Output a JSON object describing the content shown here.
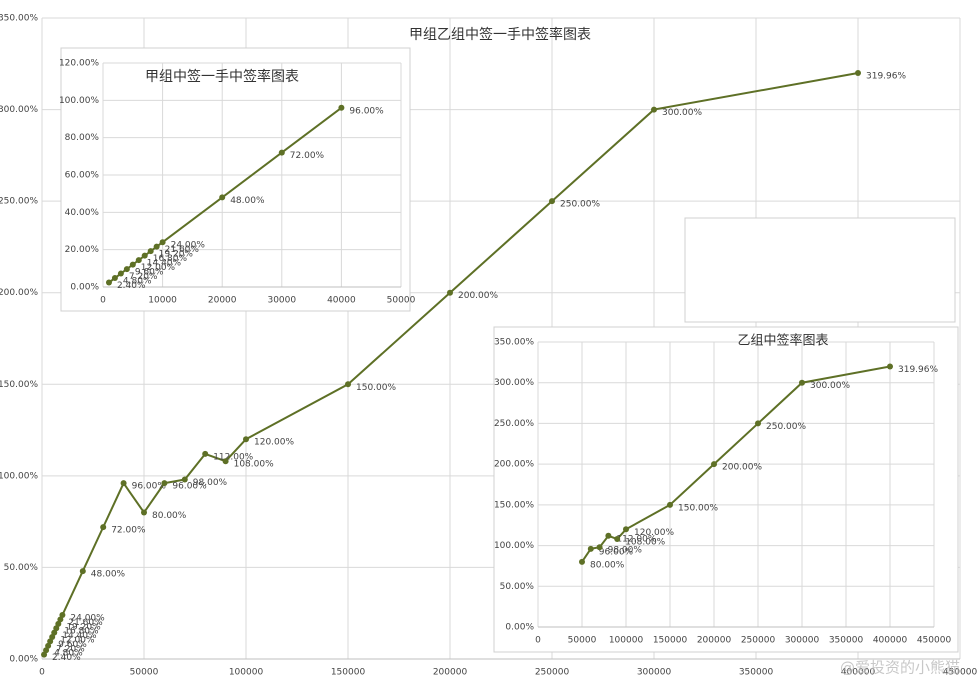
{
  "chart_data": [
    {
      "type": "line",
      "title": "甲组乙组中签一手中签率图表",
      "x": [
        1000,
        2000,
        3000,
        4000,
        5000,
        6000,
        7000,
        8000,
        9000,
        10000,
        20000,
        30000,
        40000,
        50000,
        60000,
        70000,
        80000,
        90000,
        100000,
        150000,
        200000,
        250000,
        300000,
        400000
      ],
      "values": [
        2.4,
        4.8,
        7.2,
        9.6,
        12,
        14.4,
        16.8,
        19.2,
        21.6,
        24,
        48,
        72,
        96,
        80,
        96,
        98,
        112,
        108,
        120,
        150,
        200,
        250,
        300,
        319.96
      ],
      "value_labels": [
        "2.40%",
        "4.80%",
        "7.20%",
        "9.60%",
        "12.00%",
        "14.40%",
        "16.80%",
        "19.20%",
        "21.60%",
        "24.00%",
        "48.00%",
        "72.00%",
        "96.00%",
        "80.00%",
        "96.00%",
        "98.00%",
        "112.00%",
        "108.00%",
        "120.00%",
        "150.00%",
        "200.00%",
        "250.00%",
        "300.00%",
        "319.96%"
      ],
      "color": "#5e7026",
      "xlim": [
        0,
        450000
      ],
      "xticks": [
        0,
        50000,
        100000,
        150000,
        200000,
        250000,
        300000,
        350000,
        400000,
        450000
      ],
      "ylim": [
        0,
        350
      ],
      "yticks": [
        {
          "value": 0,
          "label": "0.00%"
        },
        {
          "value": 50,
          "label": "50.00%"
        },
        {
          "value": 100,
          "label": "100.00%"
        },
        {
          "value": 150,
          "label": "150.00%"
        },
        {
          "value": 200,
          "label": "200.00%"
        },
        {
          "value": 250,
          "label": "250.00%"
        },
        {
          "value": 300,
          "label": "300.00%"
        },
        {
          "value": 350,
          "label": "350.00%"
        }
      ],
      "grid": true
    },
    {
      "type": "line",
      "title": "甲组中签一手中签率图表",
      "x": [
        1000,
        2000,
        3000,
        4000,
        5000,
        6000,
        7000,
        8000,
        9000,
        10000,
        20000,
        30000,
        40000
      ],
      "values": [
        2.4,
        4.8,
        7.2,
        9.6,
        12,
        14.4,
        16.8,
        19.2,
        21.6,
        24,
        48,
        72,
        96
      ],
      "value_labels": [
        "2.40%",
        "4.80%",
        "7.20%",
        "9.60%",
        "12.00%",
        "14.40%",
        "16.80%",
        "19.20%",
        "21.60%",
        "24.00%",
        "48.00%",
        "72.00%",
        "96.00%"
      ],
      "color": "#5e7026",
      "xlim": [
        0,
        50000
      ],
      "xticks": [
        0,
        10000,
        20000,
        30000,
        40000,
        50000
      ],
      "ylim": [
        0,
        120
      ],
      "yticks": [
        {
          "value": 0,
          "label": "0.00%"
        },
        {
          "value": 20,
          "label": "20.00%"
        },
        {
          "value": 40,
          "label": "40.00%"
        },
        {
          "value": 60,
          "label": "60.00%"
        },
        {
          "value": 80,
          "label": "80.00%"
        },
        {
          "value": 100,
          "label": "100.00%"
        },
        {
          "value": 120,
          "label": "120.00%"
        }
      ],
      "grid": true
    },
    {
      "type": "line",
      "title": "乙组中签率图表",
      "x": [
        50000,
        60000,
        70000,
        80000,
        90000,
        100000,
        150000,
        200000,
        250000,
        300000,
        400000
      ],
      "values": [
        80,
        96,
        98,
        112,
        108,
        120,
        150,
        200,
        250,
        300,
        319.96
      ],
      "value_labels": [
        "80.00%",
        "96.00%",
        "98.00%",
        "112.00%",
        "108.00%",
        "120.00%",
        "150.00%",
        "200.00%",
        "250.00%",
        "300.00%",
        "319.96%"
      ],
      "color": "#5e7026",
      "xlim": [
        0,
        450000
      ],
      "xticks": [
        0,
        50000,
        100000,
        150000,
        200000,
        250000,
        300000,
        350000,
        400000,
        450000
      ],
      "ylim": [
        0,
        350
      ],
      "yticks": [
        {
          "value": 0,
          "label": "0.00%"
        },
        {
          "value": 50,
          "label": "50.00%"
        },
        {
          "value": 100,
          "label": "100.00%"
        },
        {
          "value": 150,
          "label": "150.00%"
        },
        {
          "value": 200,
          "label": "200.00%"
        },
        {
          "value": 250,
          "label": "250.00%"
        },
        {
          "value": 300,
          "label": "300.00%"
        },
        {
          "value": 350,
          "label": "350.00%"
        }
      ],
      "grid": true
    }
  ],
  "watermark": "@爱投资的小熊猫"
}
